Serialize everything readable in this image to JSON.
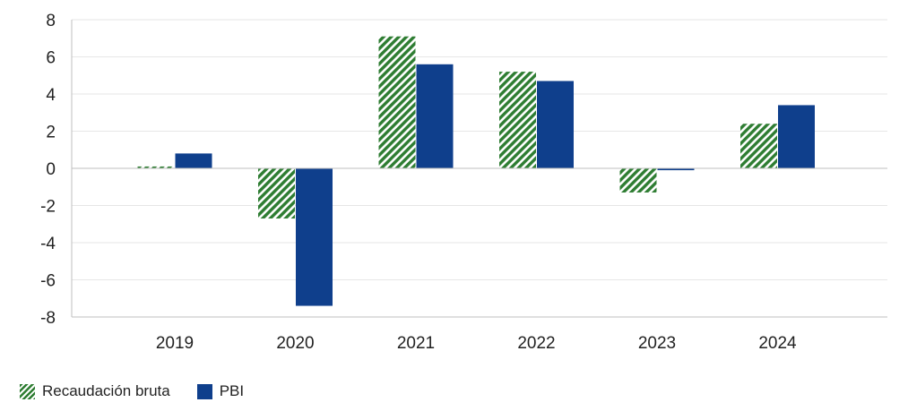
{
  "colors": {
    "recaudacion": "#2e7d32",
    "pbi": "#0f3f8c",
    "grid": "#e6e6e6",
    "axis": "#bfbfbf",
    "text": "#222222"
  },
  "legend": [
    {
      "name": "Recaudación bruta",
      "pattern": "diagonal-hatch",
      "color": "#2e7d32"
    },
    {
      "name": "PBI",
      "pattern": "solid",
      "color": "#0f3f8c"
    }
  ],
  "chart_data": {
    "type": "bar",
    "title": "",
    "xlabel": "",
    "ylabel": "",
    "categories": [
      "2019",
      "2020",
      "2021",
      "2022",
      "2023",
      "2024"
    ],
    "series": [
      {
        "name": "Recaudación bruta",
        "values": [
          0.1,
          -2.7,
          7.1,
          5.2,
          -1.3,
          2.4
        ]
      },
      {
        "name": "PBI",
        "values": [
          0.8,
          -7.4,
          5.6,
          4.7,
          -0.1,
          3.4
        ]
      }
    ],
    "ylim": [
      -8,
      8
    ],
    "yticks": [
      "8",
      "6",
      "4",
      "2",
      "0",
      "-2",
      "-4",
      "-6",
      "-8"
    ],
    "grid": true,
    "legend_position": "bottom-left"
  }
}
